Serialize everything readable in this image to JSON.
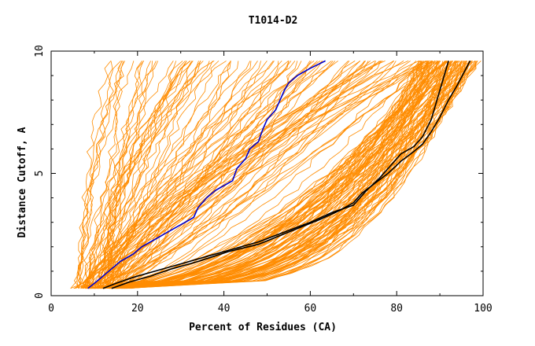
{
  "chart_data": {
    "type": "line",
    "title": "T1014-D2",
    "xlabel": "Percent of Residues (CA)",
    "ylabel": "Distance Cutoff, A",
    "xlim": [
      0,
      100
    ],
    "ylim": [
      0,
      10
    ],
    "x_ticks": [
      0,
      20,
      40,
      60,
      80,
      100
    ],
    "y_ticks": [
      0,
      5,
      10
    ],
    "grid": false,
    "colors": {
      "models": "#ff8c00",
      "highlight_blue": "#0000cc",
      "highlight_black": "#000000"
    },
    "series": [
      {
        "color": "#0000cc",
        "values": [
          [
            8.5,
            0.3
          ],
          [
            10,
            0.5
          ],
          [
            12,
            0.8
          ],
          [
            14,
            1.1
          ],
          [
            16,
            1.4
          ],
          [
            19,
            1.7
          ],
          [
            21,
            2.0
          ],
          [
            24,
            2.3
          ],
          [
            27,
            2.6
          ],
          [
            30,
            2.9
          ],
          [
            33,
            3.2
          ],
          [
            34,
            3.6
          ],
          [
            36,
            4.0
          ],
          [
            38,
            4.3
          ],
          [
            40,
            4.5
          ],
          [
            42,
            4.7
          ],
          [
            43,
            5.2
          ],
          [
            45,
            5.6
          ],
          [
            46,
            6.0
          ],
          [
            48,
            6.3
          ],
          [
            49,
            6.8
          ],
          [
            50,
            7.2
          ],
          [
            52,
            7.6
          ],
          [
            53,
            8.0
          ],
          [
            54,
            8.4
          ],
          [
            55,
            8.7
          ],
          [
            57,
            9.0
          ],
          [
            60,
            9.3
          ],
          [
            63.5,
            9.6
          ]
        ]
      },
      {
        "color": "#000000",
        "values": [
          [
            12,
            0.3
          ],
          [
            15,
            0.5
          ],
          [
            19,
            0.75
          ],
          [
            24,
            1.0
          ],
          [
            30,
            1.3
          ],
          [
            36,
            1.6
          ],
          [
            42,
            1.9
          ],
          [
            48,
            2.2
          ],
          [
            54,
            2.6
          ],
          [
            60,
            3.0
          ],
          [
            65,
            3.4
          ],
          [
            70,
            3.7
          ],
          [
            73,
            4.3
          ],
          [
            76,
            4.8
          ],
          [
            79,
            5.4
          ],
          [
            81,
            5.8
          ],
          [
            84,
            6.1
          ],
          [
            86,
            6.5
          ],
          [
            88,
            7.2
          ],
          [
            89,
            7.8
          ],
          [
            90,
            8.4
          ],
          [
            91,
            9.0
          ],
          [
            92,
            9.6
          ]
        ]
      },
      {
        "color": "#000000",
        "values": [
          [
            14,
            0.3
          ],
          [
            18,
            0.55
          ],
          [
            23,
            0.8
          ],
          [
            28,
            1.1
          ],
          [
            34,
            1.4
          ],
          [
            41,
            1.8
          ],
          [
            48,
            2.1
          ],
          [
            55,
            2.6
          ],
          [
            62,
            3.1
          ],
          [
            67,
            3.5
          ],
          [
            70,
            3.8
          ],
          [
            72,
            4.2
          ],
          [
            75,
            4.6
          ],
          [
            78,
            5.0
          ],
          [
            81,
            5.5
          ],
          [
            84,
            5.9
          ],
          [
            86,
            6.2
          ],
          [
            88,
            6.7
          ],
          [
            90,
            7.3
          ],
          [
            92,
            8.0
          ],
          [
            94,
            8.6
          ],
          [
            95.5,
            9.1
          ],
          [
            97,
            9.6
          ]
        ]
      }
    ]
  }
}
